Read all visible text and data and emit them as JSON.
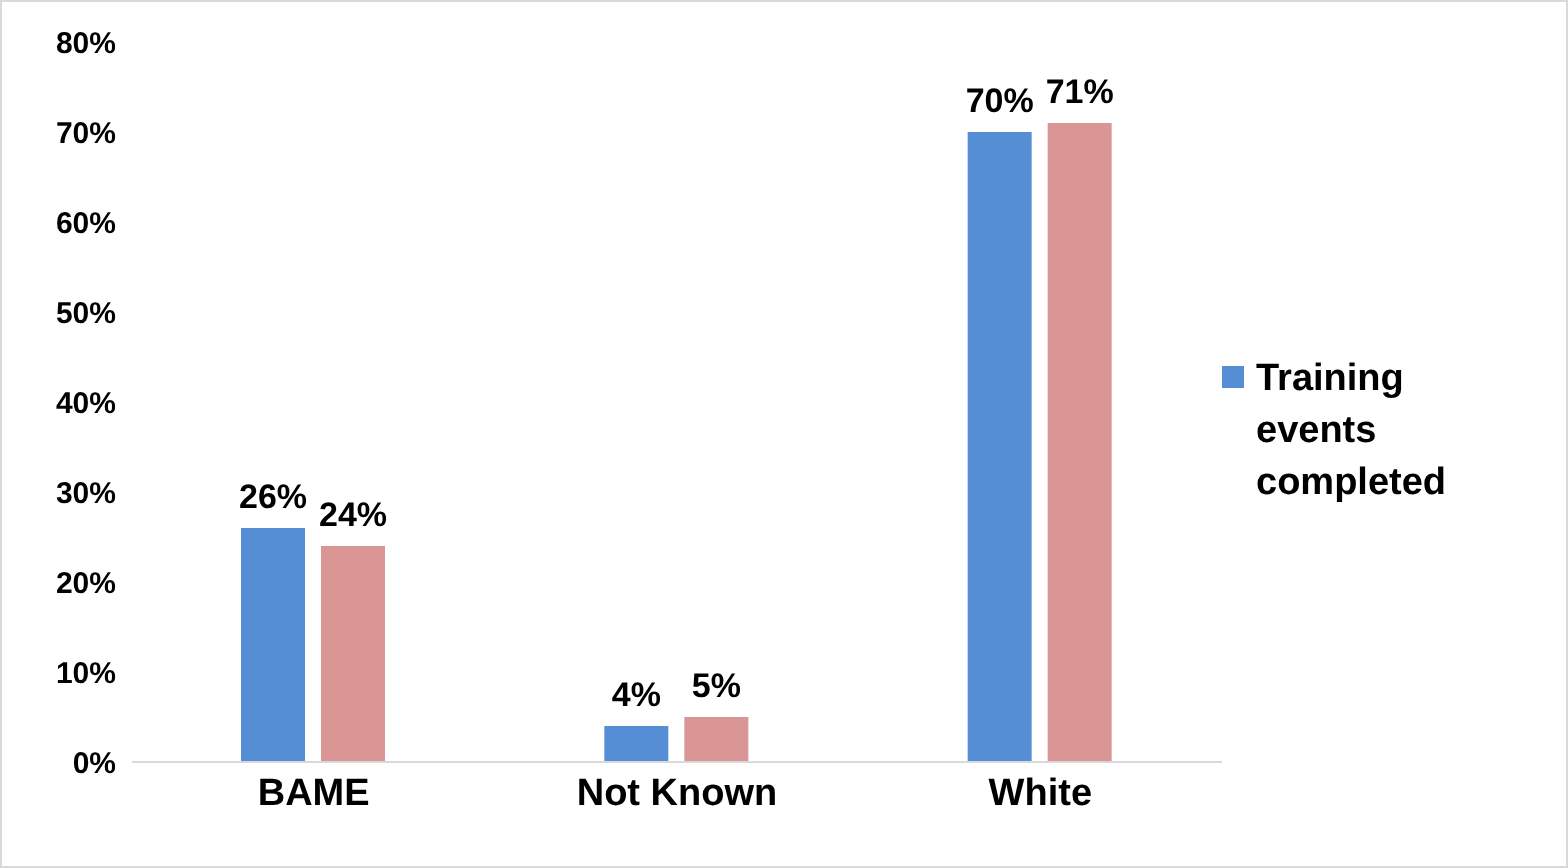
{
  "chart_data": {
    "type": "bar",
    "categories": [
      "BAME",
      "Not Known",
      "White"
    ],
    "series": [
      {
        "name": "Training events completed",
        "color": "#558ed5",
        "values": [
          26,
          4,
          70
        ],
        "value_labels": [
          "26%",
          "4%",
          "70%"
        ]
      },
      {
        "color": "#d99694",
        "values": [
          24,
          5,
          71
        ],
        "value_labels": [
          "24%",
          "5%",
          "71%"
        ]
      }
    ],
    "ylim": [
      0,
      80
    ],
    "yticks": [
      {
        "value": 0,
        "label": "0%"
      },
      {
        "value": 10,
        "label": "10%"
      },
      {
        "value": 20,
        "label": "20%"
      },
      {
        "value": 30,
        "label": "30%"
      },
      {
        "value": 40,
        "label": "40%"
      },
      {
        "value": 50,
        "label": "50%"
      },
      {
        "value": 60,
        "label": "60%"
      },
      {
        "value": 70,
        "label": "70%"
      },
      {
        "value": 80,
        "label": "80%"
      }
    ],
    "grid": false,
    "legend": "right"
  }
}
